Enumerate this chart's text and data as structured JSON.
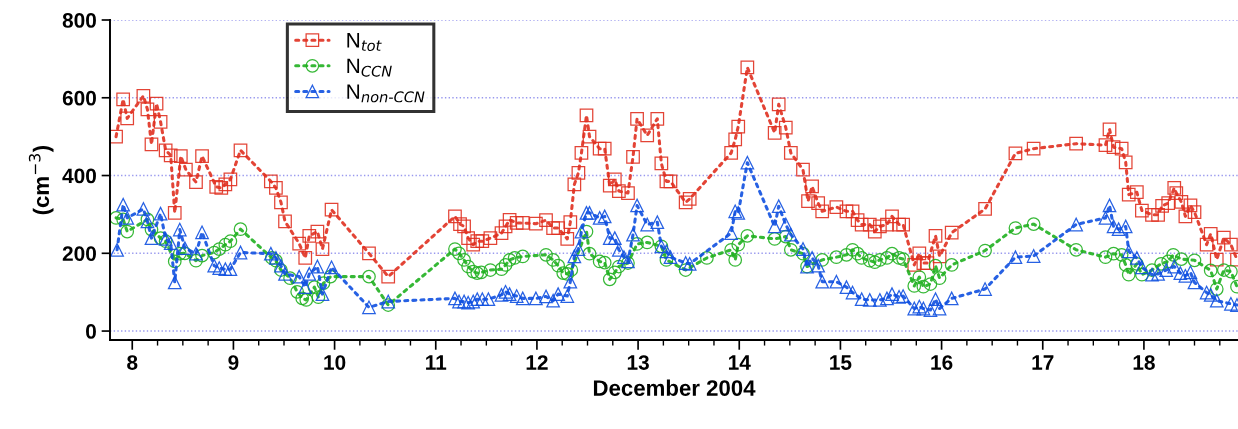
{
  "chart_data": {
    "type": "line",
    "xlabel": "December 2004",
    "ylabel": "(cm$^{−3}$)",
    "xlim": [
      7.78,
      18.93
    ],
    "xticks": [
      8,
      9,
      10,
      11,
      12,
      13,
      14,
      15,
      16,
      17,
      18
    ],
    "ylim": [
      -23,
      800
    ],
    "yticks": [
      0,
      200,
      400,
      600,
      800
    ],
    "grid": "y",
    "legend": "top left",
    "line_style": "dotted",
    "series": [
      {
        "name": "N$_{tot}$",
        "color": "#e03020",
        "marker": "square",
        "x": [
          7.84,
          7.91,
          7.95,
          8.11,
          8.15,
          8.19,
          8.24,
          8.28,
          8.33,
          8.38,
          8.42,
          8.48,
          8.53,
          8.63,
          8.69,
          8.83,
          8.88,
          8.92,
          8.97,
          9.07,
          9.37,
          9.42,
          9.47,
          9.51,
          9.65,
          9.71,
          9.75,
          9.83,
          9.88,
          9.97,
          10.34,
          10.53,
          11.19,
          11.24,
          11.28,
          11.32,
          11.37,
          11.41,
          11.46,
          11.54,
          11.65,
          11.69,
          11.73,
          11.8,
          11.86,
          11.99,
          12.09,
          12.16,
          12.21,
          12.3,
          12.33,
          12.37,
          12.41,
          12.44,
          12.49,
          12.52,
          12.62,
          12.67,
          12.72,
          12.77,
          12.81,
          12.9,
          12.95,
          12.99,
          13.09,
          13.19,
          13.23,
          13.28,
          13.32,
          13.47,
          13.51,
          13.92,
          13.96,
          13.99,
          14.08,
          14.35,
          14.39,
          14.46,
          14.51,
          14.63,
          14.68,
          14.72,
          14.78,
          14.82,
          14.96,
          15.06,
          15.12,
          15.17,
          15.21,
          15.29,
          15.34,
          15.39,
          15.46,
          15.51,
          15.58,
          15.62,
          15.73,
          15.78,
          15.82,
          15.86,
          15.94,
          15.98,
          16.1,
          16.43,
          16.73,
          16.91,
          17.33,
          17.62,
          17.66,
          17.7,
          17.78,
          17.82,
          17.85,
          17.93,
          17.98,
          18.08,
          18.14,
          18.18,
          18.24,
          18.3,
          18.32,
          18.37,
          18.41,
          18.46,
          18.5,
          18.62,
          18.66,
          18.72,
          18.79,
          18.86,
          18.92
        ],
        "values": [
          500,
          596,
          547,
          605,
          570,
          480,
          585,
          538,
          465,
          452,
          304,
          450,
          415,
          383,
          450,
          371,
          368,
          377,
          390,
          465,
          385,
          368,
          331,
          282,
          225,
          188,
          245,
          256,
          211,
          312,
          200,
          140,
          295,
          275,
          269,
          239,
          222,
          231,
          231,
          239,
          252,
          269,
          286,
          278,
          278,
          276,
          285,
          265,
          265,
          237,
          280,
          377,
          407,
          458,
          555,
          500,
          469,
          469,
          374,
          390,
          360,
          355,
          448,
          546,
          503,
          546,
          431,
          385,
          385,
          331,
          340,
          458,
          493,
          526,
          678,
          510,
          583,
          523,
          458,
          415,
          334,
          372,
          329,
          308,
          319,
          308,
          308,
          285,
          274,
          274,
          256,
          269,
          274,
          295,
          274,
          274,
          170,
          200,
          175,
          175,
          245,
          192,
          253,
          314,
          457,
          469,
          482,
          478,
          519,
          473,
          469,
          434,
          351,
          357,
          310,
          299,
          299,
          322,
          329,
          368,
          355,
          332,
          295,
          323,
          306,
          222,
          250,
          184,
          240,
          222,
          184
        ]
      },
      {
        "name": "N$_{CCN}$",
        "color": "#20b020",
        "marker": "circle",
        "x": [
          7.84,
          7.91,
          7.95,
          8.15,
          8.19,
          8.28,
          8.33,
          8.42,
          8.47,
          8.52,
          8.63,
          8.69,
          8.81,
          8.86,
          8.92,
          8.97,
          9.07,
          9.38,
          9.42,
          9.47,
          9.56,
          9.63,
          9.68,
          9.72,
          9.8,
          9.84,
          9.89,
          9.96,
          10.34,
          10.53,
          11.19,
          11.23,
          11.28,
          11.32,
          11.37,
          11.41,
          11.45,
          11.54,
          11.65,
          11.69,
          11.73,
          11.78,
          11.86,
          12.09,
          12.16,
          12.21,
          12.26,
          12.3,
          12.34,
          12.49,
          12.52,
          12.62,
          12.67,
          12.72,
          12.77,
          12.81,
          12.9,
          12.99,
          13.09,
          13.23,
          13.28,
          13.47,
          13.68,
          13.92,
          13.96,
          13.99,
          14.08,
          14.35,
          14.46,
          14.51,
          14.63,
          14.67,
          14.82,
          14.96,
          15.06,
          15.12,
          15.17,
          15.21,
          15.29,
          15.34,
          15.39,
          15.46,
          15.51,
          15.58,
          15.62,
          15.73,
          15.78,
          15.82,
          15.89,
          15.94,
          15.98,
          16.1,
          16.43,
          16.73,
          16.91,
          17.33,
          17.62,
          17.7,
          17.78,
          17.82,
          17.85,
          17.93,
          17.98,
          18.08,
          18.17,
          18.24,
          18.29,
          18.37,
          18.5,
          18.66,
          18.72,
          18.79,
          18.86,
          18.92
        ],
        "values": [
          291,
          287,
          256,
          287,
          261,
          239,
          231,
          179,
          199,
          200,
          181,
          194,
          202,
          211,
          222,
          231,
          262,
          188,
          181,
          157,
          136,
          101,
          84,
          80,
          113,
          87,
          123,
          140,
          140,
          67,
          211,
          200,
          183,
          166,
          153,
          149,
          151,
          157,
          159,
          170,
          183,
          188,
          192,
          196,
          183,
          168,
          149,
          147,
          157,
          256,
          199,
          179,
          176,
          133,
          151,
          166,
          175,
          224,
          228,
          218,
          183,
          157,
          188,
          209,
          183,
          222,
          245,
          237,
          243,
          209,
          199,
          166,
          183,
          190,
          196,
          209,
          199,
          188,
          181,
          177,
          183,
          188,
          199,
          188,
          185,
          116,
          139,
          114,
          121,
          168,
          136,
          170,
          207,
          265,
          275,
          209,
          190,
          199,
          196,
          170,
          145,
          173,
          145,
          157,
          173,
          179,
          196,
          185,
          182,
          156,
          108,
          157,
          153,
          114
        ]
      },
      {
        "name": "N$_{non‑CCN}$",
        "color": "#1050e0",
        "marker": "triangle",
        "x": [
          7.85,
          7.91,
          7.95,
          8.11,
          8.15,
          8.19,
          8.28,
          8.33,
          8.38,
          8.42,
          8.47,
          8.52,
          8.63,
          8.69,
          8.81,
          8.86,
          8.92,
          8.97,
          9.07,
          9.37,
          9.42,
          9.47,
          9.51,
          9.65,
          9.71,
          9.75,
          9.83,
          9.88,
          9.97,
          10.34,
          10.53,
          11.19,
          11.23,
          11.28,
          11.32,
          11.37,
          11.41,
          11.46,
          11.52,
          11.65,
          11.69,
          11.73,
          11.8,
          11.86,
          11.99,
          12.09,
          12.16,
          12.21,
          12.3,
          12.33,
          12.37,
          12.41,
          12.44,
          12.49,
          12.52,
          12.62,
          12.67,
          12.72,
          12.77,
          12.81,
          12.86,
          12.9,
          12.95,
          12.99,
          13.09,
          13.19,
          13.23,
          13.28,
          13.32,
          13.47,
          13.51,
          13.92,
          13.96,
          13.99,
          14.08,
          14.35,
          14.39,
          14.46,
          14.51,
          14.63,
          14.67,
          14.72,
          14.78,
          14.82,
          14.96,
          15.06,
          15.12,
          15.21,
          15.29,
          15.39,
          15.46,
          15.51,
          15.58,
          15.62,
          15.73,
          15.78,
          15.82,
          15.89,
          15.94,
          15.98,
          16.1,
          16.43,
          16.73,
          16.91,
          17.33,
          17.62,
          17.66,
          17.7,
          17.75,
          17.82,
          17.85,
          17.93,
          17.98,
          18.08,
          18.14,
          18.22,
          18.3,
          18.36,
          18.41,
          18.46,
          18.5,
          18.62,
          18.66,
          18.72,
          18.86,
          18.92
        ],
        "values": [
          209,
          325,
          291,
          314,
          282,
          239,
          302,
          237,
          226,
          125,
          261,
          213,
          199,
          254,
          168,
          162,
          159,
          159,
          202,
          199,
          188,
          168,
          147,
          140,
          113,
          147,
          166,
          95,
          164,
          61,
          76,
          84,
          76,
          76,
          73,
          76,
          82,
          82,
          82,
          93,
          101,
          95,
          90,
          84,
          84,
          89,
          78,
          95,
          90,
          127,
          192,
          211,
          256,
          304,
          304,
          291,
          295,
          239,
          239,
          209,
          190,
          179,
          248,
          323,
          274,
          280,
          218,
          205,
          190,
          175,
          173,
          252,
          308,
          304,
          433,
          269,
          321,
          274,
          248,
          211,
          166,
          188,
          168,
          127,
          127,
          113,
          99,
          82,
          80,
          80,
          84,
          95,
          88,
          90,
          58,
          63,
          58,
          54,
          82,
          58,
          84,
          108,
          190,
          193,
          274,
          291,
          323,
          269,
          262,
          269,
          205,
          188,
          164,
          145,
          147,
          157,
          166,
          149,
          142,
          151,
          125,
          99,
          93,
          78,
          70,
          67
        ]
      }
    ]
  }
}
